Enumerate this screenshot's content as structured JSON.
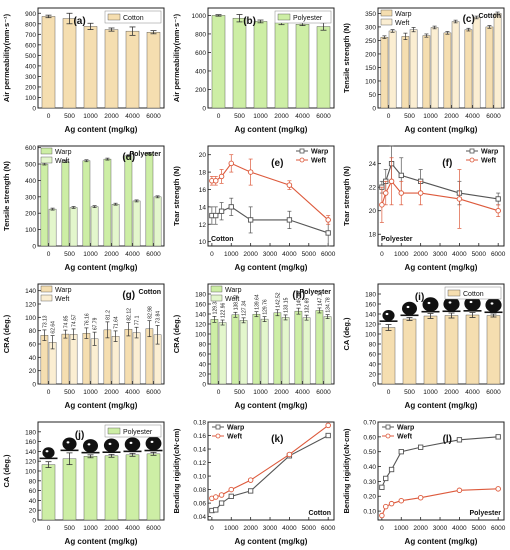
{
  "figure": {
    "colors": {
      "cotton": "#f5deb0",
      "polyester": "#cdeea5",
      "warp": "#555555",
      "weft": "#dd5a3c",
      "bar_edge": "#444444",
      "axis": "#222222"
    }
  },
  "chart_data": [
    {
      "type": "bar",
      "panel": "(a)",
      "fill": "cotton",
      "categories": [
        "0",
        "500",
        "1000",
        "2000",
        "4000",
        "6000"
      ],
      "values": [
        870,
        850,
        775,
        745,
        730,
        720
      ],
      "errors": [
        12,
        50,
        30,
        15,
        40,
        15
      ],
      "legend": [
        "Cotton"
      ],
      "legend_position": "top-right",
      "xlabel": "Ag content (mg/kg)",
      "ylabel": "Air permeability(mm·s⁻¹)",
      "ylim": [
        0,
        950
      ],
      "yticks": [
        0,
        100,
        200,
        300,
        400,
        500,
        600,
        700,
        800,
        900
      ]
    },
    {
      "type": "bar",
      "panel": "(b)",
      "fill": "polyester",
      "categories": [
        "0",
        "500",
        "1000",
        "2000",
        "4000",
        "6000"
      ],
      "values": [
        1000,
        970,
        935,
        920,
        905,
        880
      ],
      "errors": [
        8,
        40,
        15,
        20,
        15,
        40
      ],
      "legend": [
        "Polyester"
      ],
      "legend_position": "top-right",
      "xlabel": "Ag content (mg/kg)",
      "ylabel": "Air permeability(mm·s⁻¹)",
      "ylim": [
        0,
        1080
      ],
      "yticks": [
        0,
        200,
        400,
        600,
        800,
        1000
      ]
    },
    {
      "type": "bar",
      "panel": "(c)",
      "fills": [
        "cotton",
        "cotton_light"
      ],
      "categories": [
        "0",
        "500",
        "1000",
        "2000",
        "4000",
        "6000"
      ],
      "series": [
        {
          "name": "Warp",
          "values": [
            262,
            265,
            268,
            278,
            290,
            300
          ],
          "errors": [
            5,
            12,
            6,
            5,
            5,
            5
          ]
        },
        {
          "name": "Weft",
          "values": [
            285,
            290,
            298,
            320,
            335,
            350
          ],
          "errors": [
            5,
            8,
            5,
            5,
            5,
            5
          ]
        }
      ],
      "annotation": "Cotton",
      "legend_position": "top-left",
      "xlabel": "Ag content (mg/kg)",
      "ylabel": "Tensile strength (N)",
      "ylim": [
        0,
        370
      ],
      "yticks": [
        0,
        50,
        100,
        150,
        200,
        250,
        300,
        350
      ]
    },
    {
      "type": "bar",
      "panel": "(d)",
      "fills": [
        "polyester",
        "polyester_light"
      ],
      "categories": [
        "0",
        "500",
        "1000",
        "2000",
        "4000",
        "6000"
      ],
      "series": [
        {
          "name": "Warp",
          "values": [
            500,
            515,
            520,
            530,
            550,
            565
          ],
          "errors": [
            6,
            6,
            6,
            6,
            6,
            6
          ]
        },
        {
          "name": "Weft",
          "values": [
            225,
            235,
            240,
            255,
            275,
            300
          ],
          "errors": [
            6,
            6,
            6,
            6,
            6,
            6
          ]
        }
      ],
      "annotation": "Polyester",
      "legend_position": "top-left",
      "xlabel": "Ag content (mg/kg)",
      "ylabel": "Tensile strength (N)",
      "ylim": [
        0,
        610
      ],
      "yticks": [
        0,
        100,
        200,
        300,
        400,
        500,
        600
      ]
    },
    {
      "type": "line",
      "panel": "(e)",
      "x": [
        0,
        200,
        500,
        1000,
        2000,
        4000,
        6000
      ],
      "series": [
        {
          "name": "Warp",
          "values": [
            13,
            13,
            13.5,
            14,
            12.5,
            12.5,
            11
          ],
          "errors": [
            1,
            1,
            1,
            1,
            1.5,
            1,
            1.5
          ]
        },
        {
          "name": "Weft",
          "values": [
            17,
            17,
            17.5,
            19,
            18,
            16.5,
            12.5
          ],
          "errors": [
            0.5,
            0.5,
            0.8,
            1,
            1.5,
            0.5,
            0.5
          ]
        }
      ],
      "annotation": "Cotton",
      "legend_position": "top-right",
      "xlabel": "Ag content (mg/kg)",
      "ylabel": "Tear strength (N)",
      "xlim": [
        -200,
        6300
      ],
      "ylim": [
        9.5,
        21
      ],
      "yticks": [
        10,
        12,
        14,
        16,
        18,
        20
      ],
      "xticks": [
        0,
        1000,
        2000,
        3000,
        4000,
        5000,
        6000
      ]
    },
    {
      "type": "line",
      "panel": "(f)",
      "x": [
        0,
        200,
        500,
        1000,
        2000,
        4000,
        6000
      ],
      "series": [
        {
          "name": "Warp",
          "values": [
            22,
            22.5,
            24,
            23,
            22.5,
            21.5,
            21
          ],
          "errors": [
            0.5,
            1,
            1.5,
            1.5,
            1,
            1,
            0.5
          ]
        },
        {
          "name": "Weft",
          "values": [
            20.5,
            21.5,
            22.5,
            21.5,
            21.5,
            21,
            20
          ],
          "errors": [
            1.5,
            1,
            2,
            1,
            1,
            2.5,
            0.5
          ]
        }
      ],
      "annotation": "Polyester",
      "legend_position": "top-right",
      "xlabel": "Ag content (mg/kg)",
      "ylabel": "Tear strength (N)",
      "xlim": [
        -200,
        6300
      ],
      "ylim": [
        17,
        25.5
      ],
      "yticks": [
        18,
        20,
        22,
        24
      ],
      "xticks": [
        0,
        1000,
        2000,
        3000,
        4000,
        5000,
        6000
      ]
    },
    {
      "type": "bar",
      "panel": "(g)",
      "fills": [
        "cotton",
        "cotton_light"
      ],
      "categories": [
        "0",
        "500",
        "1000",
        "2000",
        "4000",
        "6000"
      ],
      "series": [
        {
          "name": "Warp",
          "values": [
            73.13,
            74.85,
            76.16,
            81.2,
            82.12,
            82.98
          ],
          "errors": [
            8,
            6,
            8,
            12,
            10,
            12
          ],
          "labels": [
            "73.13",
            "74.85",
            "76.16",
            "81.2",
            "82.12",
            "82.98"
          ]
        },
        {
          "name": "Weft",
          "values": [
            62.64,
            74.57,
            67.79,
            71.64,
            77.1,
            73.84
          ],
          "errors": [
            10,
            8,
            10,
            8,
            8,
            14
          ],
          "labels": [
            "62.64",
            "74.57",
            "67.79",
            "71.64",
            "77.1",
            "73.84"
          ]
        }
      ],
      "annotation": "Cotton",
      "legend_position": "top-left",
      "xlabel": "Ag content (mg/kg)",
      "ylabel": "CRA (deg.)",
      "ylim": [
        0,
        150
      ],
      "yticks": [
        0,
        20,
        40,
        60,
        80,
        100,
        120,
        140
      ]
    },
    {
      "type": "bar",
      "panel": "(h)",
      "fills": [
        "polyester",
        "polyester_light"
      ],
      "categories": [
        "0",
        "500",
        "1000",
        "2000",
        "4000",
        "6000"
      ],
      "series": [
        {
          "name": "Warp",
          "values": [
            129.33,
            138.42,
            139.64,
            142.52,
            145.69,
            147.12
          ],
          "errors": [
            6,
            5,
            5,
            6,
            6,
            5
          ],
          "labels": [
            "129.33",
            "138.42",
            "139.64",
            "142.52",
            "145.69",
            "147.12"
          ]
        },
        {
          "name": "Weft",
          "values": [
            122.96,
            127.34,
            129.76,
            133.15,
            132.69,
            134.78
          ],
          "errors": [
            5,
            5,
            5,
            5,
            5,
            4
          ],
          "labels": [
            "122.96",
            "127.34",
            "129.76",
            "133.15",
            "132.69",
            "134.78"
          ]
        }
      ],
      "annotation": "Polyester",
      "legend_position": "top-left",
      "xlabel": "Ag content (mg/kg)",
      "ylabel": "CRA (deg.)",
      "ylim": [
        0,
        200
      ],
      "yticks": [
        0,
        20,
        40,
        60,
        80,
        100,
        120,
        140,
        160,
        180
      ]
    },
    {
      "type": "bar",
      "panel": "(i)",
      "fill": "cotton",
      "droplets": true,
      "categories": [
        "0",
        "500",
        "1000",
        "2000",
        "4000",
        "6000"
      ],
      "values": [
        113,
        130,
        136,
        137,
        138,
        137
      ],
      "errors": [
        6,
        3,
        5,
        5,
        5,
        3
      ],
      "legend": [
        "Cotton"
      ],
      "legend_position": "top-right",
      "xlabel": "Ag content (mg/kg)",
      "ylabel": "CA (deg.)",
      "ylim": [
        0,
        200
      ],
      "yticks": [
        0,
        20,
        40,
        60,
        80,
        100,
        120,
        140,
        160,
        180
      ]
    },
    {
      "type": "bar",
      "panel": "(j)",
      "fill": "polyester",
      "droplets": true,
      "categories": [
        "0",
        "500",
        "1000",
        "2000",
        "4000",
        "6000"
      ],
      "values": [
        113,
        125,
        130,
        131,
        133,
        135
      ],
      "errors": [
        6,
        12,
        3,
        3,
        3,
        3
      ],
      "legend": [
        "Polyester"
      ],
      "legend_position": "top-right",
      "xlabel": "Ag content (mg/kg)",
      "ylabel": "CA (deg.)",
      "ylim": [
        0,
        200
      ],
      "yticks": [
        0,
        20,
        40,
        60,
        80,
        100,
        120,
        140,
        160,
        180
      ]
    },
    {
      "type": "line",
      "panel": "(k)",
      "x": [
        0,
        200,
        500,
        1000,
        2000,
        4000,
        6000
      ],
      "series": [
        {
          "name": "Warp",
          "values": [
            0.049,
            0.05,
            0.06,
            0.07,
            0.078,
            0.13,
            0.16
          ]
        },
        {
          "name": "Weft",
          "values": [
            0.067,
            0.069,
            0.072,
            0.08,
            0.094,
            0.132,
            0.175
          ]
        }
      ],
      "annotation": "Cotton",
      "legend_position": "top-left",
      "xlabel": "Ag content (mg/kg)",
      "ylabel": "Bending rigidity(cN·cm)",
      "xlim": [
        -200,
        6300
      ],
      "ylim": [
        0.035,
        0.18
      ],
      "yticks": [
        0.04,
        0.06,
        0.08,
        0.1,
        0.12,
        0.14,
        0.16,
        0.18
      ],
      "xticks": [
        0,
        1000,
        2000,
        3000,
        4000,
        5000,
        6000
      ]
    },
    {
      "type": "line",
      "panel": "(l)",
      "x": [
        0,
        200,
        500,
        1000,
        2000,
        4000,
        6000
      ],
      "series": [
        {
          "name": "Warp",
          "values": [
            0.26,
            0.32,
            0.38,
            0.5,
            0.53,
            0.58,
            0.6
          ]
        },
        {
          "name": "Weft",
          "values": [
            0.07,
            0.13,
            0.15,
            0.17,
            0.19,
            0.24,
            0.25
          ]
        }
      ],
      "annotation": "Polyester",
      "legend_position": "top-left",
      "xlabel": "Ag content (mg/kg)",
      "ylabel": "Bending rigidity(cN·cm)",
      "xlim": [
        -200,
        6300
      ],
      "ylim": [
        0.04,
        0.7
      ],
      "yticks": [
        0.1,
        0.2,
        0.3,
        0.4,
        0.5,
        0.6,
        0.7
      ],
      "xticks": [
        0,
        1000,
        2000,
        3000,
        4000,
        5000,
        6000
      ]
    }
  ]
}
